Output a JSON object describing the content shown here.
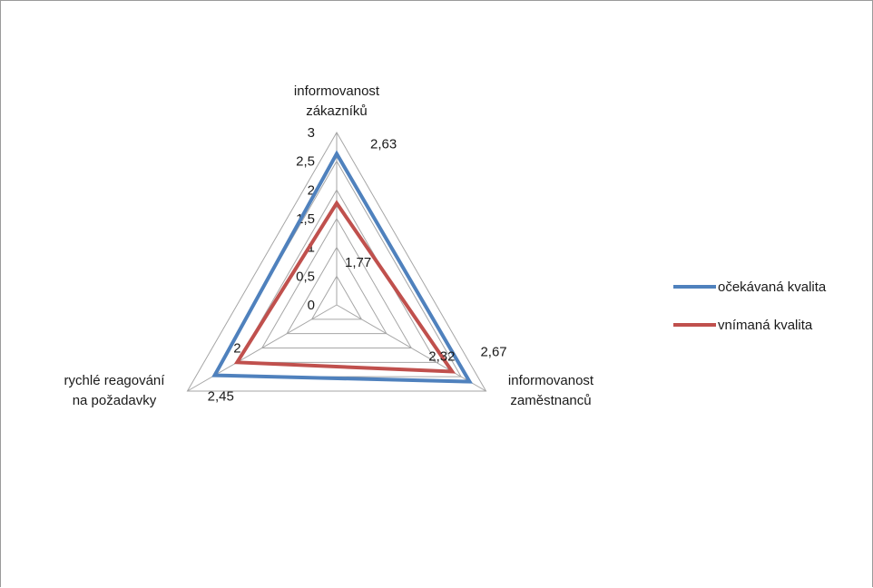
{
  "chart_data": {
    "type": "radar",
    "title": "",
    "categories": [
      [
        "informovanost",
        "zákazníků"
      ],
      [
        "informovanost",
        "zaměstnanců"
      ],
      [
        "rychlé reagování",
        "na požadavky"
      ]
    ],
    "ticks": [
      "0",
      "0,5",
      "1",
      "1,5",
      "2",
      "2,5",
      "3"
    ],
    "tick_values": [
      0,
      0.5,
      1,
      1.5,
      2,
      2.5,
      3
    ],
    "range": [
      0,
      3
    ],
    "legend_position": "right",
    "series": [
      {
        "name": "očekávaná kvalita",
        "color": "#4f81bd",
        "values": [
          2.63,
          2.67,
          2.45
        ],
        "data_labels": [
          "2,63",
          "2,67",
          "2,45"
        ]
      },
      {
        "name": "vnímaná kvalita",
        "color": "#c0504d",
        "values": [
          1.77,
          2.32,
          2.0
        ],
        "data_labels": [
          "1,77",
          "2,32",
          "2"
        ]
      }
    ]
  }
}
